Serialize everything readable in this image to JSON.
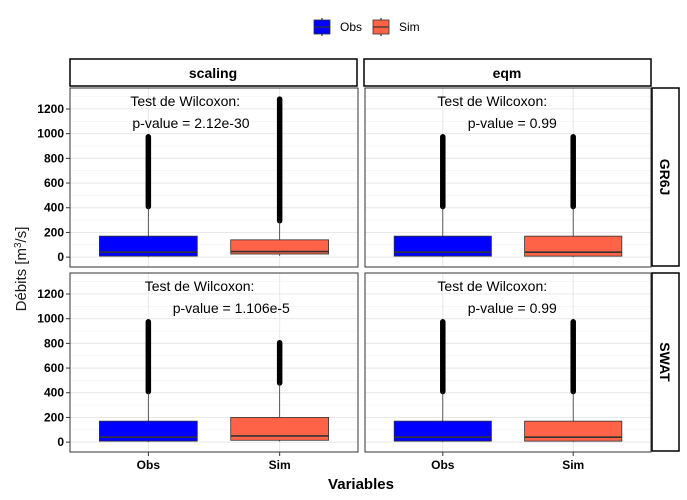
{
  "chart_data": {
    "type": "boxplot",
    "xlabel": "Variables",
    "ylabel_main": "Débits [m",
    "ylabel_sup": "3",
    "ylabel_end": "/s]",
    "ylim": [
      -80,
      1370
    ],
    "yticks": [
      0,
      200,
      400,
      600,
      800,
      1000,
      1200
    ],
    "categories": [
      "Obs",
      "Sim"
    ],
    "legend": {
      "position": "top",
      "entries": [
        {
          "name": "Obs",
          "color": "#0000FF"
        },
        {
          "name": "Sim",
          "color": "#FF6347"
        }
      ]
    },
    "columns": [
      "scaling",
      "eqm"
    ],
    "rows": [
      "GR6J",
      "SWAT"
    ],
    "panels": [
      {
        "col": "scaling",
        "row": "GR6J",
        "annotation": [
          "Test de Wilcoxon:",
          "p-value = 2.12e-30"
        ],
        "boxes": [
          {
            "category": "Obs",
            "q1": 8,
            "median": 40,
            "q3": 170,
            "whisker_low": 0,
            "whisker_high": 410,
            "outlier_max": 975
          },
          {
            "category": "Sim",
            "q1": 25,
            "median": 45,
            "q3": 140,
            "whisker_low": 10,
            "whisker_high": 295,
            "outlier_max": 1280
          }
        ]
      },
      {
        "col": "eqm",
        "row": "GR6J",
        "annotation": [
          "Test de Wilcoxon:",
          "p-value = 0.99"
        ],
        "boxes": [
          {
            "category": "Obs",
            "q1": 8,
            "median": 40,
            "q3": 170,
            "whisker_low": 0,
            "whisker_high": 410,
            "outlier_max": 975
          },
          {
            "category": "Sim",
            "q1": 8,
            "median": 40,
            "q3": 170,
            "whisker_low": 0,
            "whisker_high": 410,
            "outlier_max": 975
          }
        ]
      },
      {
        "col": "scaling",
        "row": "SWAT",
        "annotation": [
          "Test de Wilcoxon:",
          "p-value = 1.106e-5"
        ],
        "boxes": [
          {
            "category": "Obs",
            "q1": 8,
            "median": 40,
            "q3": 170,
            "whisker_low": 0,
            "whisker_high": 410,
            "outlier_max": 975
          },
          {
            "category": "Sim",
            "q1": 15,
            "median": 50,
            "q3": 200,
            "whisker_low": 5,
            "whisker_high": 480,
            "outlier_max": 805
          }
        ]
      },
      {
        "col": "eqm",
        "row": "SWAT",
        "annotation": [
          "Test de Wilcoxon:",
          "p-value = 0.99"
        ],
        "boxes": [
          {
            "category": "Obs",
            "q1": 8,
            "median": 40,
            "q3": 170,
            "whisker_low": 0,
            "whisker_high": 410,
            "outlier_max": 975
          },
          {
            "category": "Sim",
            "q1": 8,
            "median": 40,
            "q3": 170,
            "whisker_low": 0,
            "whisker_high": 410,
            "outlier_max": 975
          }
        ]
      }
    ]
  }
}
